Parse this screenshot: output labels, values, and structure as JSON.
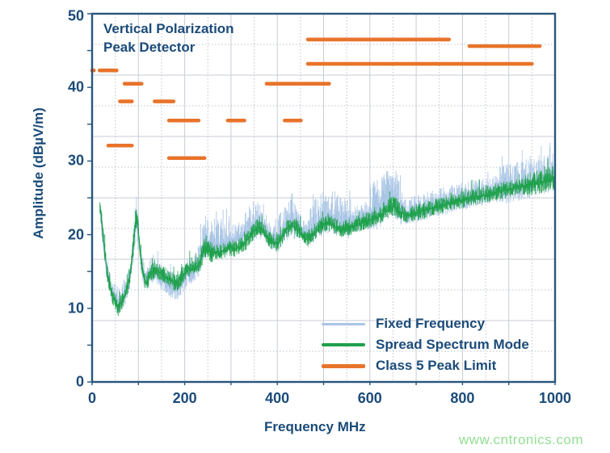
{
  "page": {
    "watermark": "www.cntronics.com"
  },
  "chart_data": {
    "type": "line",
    "annotation": [
      "Vertical Polarization",
      "Peak Detector"
    ],
    "xlabel": "Frequency MHz",
    "ylabel": "Amplitude (dBµV/m)",
    "xlim": [
      0,
      1000
    ],
    "ylim": [
      0,
      50
    ],
    "x_ticks": [
      0,
      200,
      400,
      600,
      800,
      1000
    ],
    "y_ticks": [
      0,
      10,
      20,
      30,
      40,
      50
    ],
    "grid": {
      "on": true,
      "x_step_mhz": 50,
      "y_divisions": 12
    },
    "legend": {
      "position": "inside-bottom-right"
    },
    "colors": {
      "text_navy": "#1b4b7a",
      "axis_border": "#29567c",
      "grid_solid": "#c8cdd5",
      "grid_dotted": "#bcc4ce",
      "watermark_green": "#93df93"
    },
    "series": [
      {
        "name": "Fixed Frequency",
        "type": "noisy-line",
        "color": "#a9c5e5",
        "noise": {
          "up": 2.2,
          "down": 1.6,
          "seed": 7
        },
        "spike_zones": [
          [
            88,
            102,
            1.4
          ],
          [
            228,
            300,
            1.7
          ],
          [
            330,
            372,
            1.5
          ],
          [
            396,
            440,
            1.4
          ],
          [
            470,
            560,
            1.8
          ],
          [
            600,
            668,
            2.1
          ],
          [
            880,
            1000,
            1.5
          ]
        ],
        "anchors": [
          [
            17,
            23.2
          ],
          [
            22,
            20.5
          ],
          [
            28,
            16.8
          ],
          [
            35,
            14.0
          ],
          [
            42,
            12.4
          ],
          [
            50,
            11.2
          ],
          [
            58,
            10.6
          ],
          [
            66,
            11.4
          ],
          [
            74,
            12.4
          ],
          [
            82,
            14.2
          ],
          [
            90,
            18.5
          ],
          [
            95,
            22.5
          ],
          [
            100,
            19.8
          ],
          [
            106,
            16.0
          ],
          [
            112,
            14.4
          ],
          [
            120,
            13.9
          ],
          [
            128,
            14.6
          ],
          [
            136,
            14.9
          ],
          [
            144,
            14.5
          ],
          [
            152,
            13.9
          ],
          [
            160,
            13.4
          ],
          [
            168,
            13.0
          ],
          [
            176,
            12.8
          ],
          [
            184,
            12.7
          ],
          [
            192,
            13.1
          ],
          [
            200,
            14.0
          ],
          [
            208,
            14.8
          ],
          [
            216,
            14.9
          ],
          [
            224,
            15.1
          ],
          [
            232,
            16.0
          ],
          [
            238,
            17.8
          ],
          [
            244,
            18.8
          ],
          [
            252,
            18.9
          ],
          [
            260,
            18.4
          ],
          [
            270,
            18.6
          ],
          [
            280,
            18.8
          ],
          [
            290,
            18.9
          ],
          [
            300,
            19.1
          ],
          [
            310,
            19.3
          ],
          [
            320,
            19.6
          ],
          [
            330,
            20.1
          ],
          [
            340,
            20.7
          ],
          [
            350,
            21.3
          ],
          [
            358,
            21.5
          ],
          [
            366,
            21.0
          ],
          [
            374,
            20.4
          ],
          [
            382,
            19.8
          ],
          [
            390,
            19.4
          ],
          [
            398,
            19.5
          ],
          [
            406,
            20.0
          ],
          [
            414,
            20.8
          ],
          [
            422,
            21.4
          ],
          [
            430,
            21.8
          ],
          [
            438,
            21.5
          ],
          [
            446,
            21.0
          ],
          [
            454,
            20.4
          ],
          [
            462,
            20.0
          ],
          [
            470,
            20.4
          ],
          [
            478,
            20.9
          ],
          [
            486,
            21.3
          ],
          [
            494,
            21.7
          ],
          [
            502,
            22.0
          ],
          [
            510,
            22.3
          ],
          [
            518,
            22.1
          ],
          [
            526,
            21.9
          ],
          [
            534,
            21.7
          ],
          [
            542,
            21.5
          ],
          [
            550,
            21.5
          ],
          [
            560,
            21.6
          ],
          [
            572,
            21.9
          ],
          [
            584,
            22.1
          ],
          [
            596,
            22.3
          ],
          [
            608,
            22.6
          ],
          [
            620,
            23.0
          ],
          [
            630,
            23.6
          ],
          [
            640,
            24.4
          ],
          [
            648,
            24.7
          ],
          [
            656,
            24.2
          ],
          [
            664,
            23.6
          ],
          [
            672,
            23.1
          ],
          [
            680,
            22.9
          ],
          [
            690,
            23.0
          ],
          [
            702,
            23.2
          ],
          [
            714,
            23.5
          ],
          [
            726,
            23.7
          ],
          [
            738,
            23.9
          ],
          [
            750,
            24.1
          ],
          [
            762,
            24.3
          ],
          [
            774,
            24.5
          ],
          [
            786,
            24.7
          ],
          [
            798,
            24.9
          ],
          [
            810,
            25.0
          ],
          [
            822,
            25.2
          ],
          [
            834,
            25.4
          ],
          [
            846,
            25.6
          ],
          [
            858,
            25.8
          ],
          [
            870,
            25.9
          ],
          [
            882,
            26.1
          ],
          [
            894,
            26.3
          ],
          [
            906,
            26.5
          ],
          [
            918,
            26.7
          ],
          [
            930,
            26.9
          ],
          [
            942,
            27.1
          ],
          [
            954,
            27.3
          ],
          [
            966,
            27.5
          ],
          [
            978,
            27.7
          ],
          [
            1000,
            28.0
          ]
        ]
      },
      {
        "name": "Spread Spectrum Mode",
        "type": "noisy-line",
        "color": "#1fa14b",
        "noise": {
          "up": 1.2,
          "down": 1.1,
          "seed": 3
        },
        "spike_zones": [
          [
            88,
            100,
            1.3
          ],
          [
            230,
            260,
            1.3
          ],
          [
            620,
            660,
            1.2
          ],
          [
            930,
            1000,
            1.5
          ]
        ],
        "anchors": [
          [
            17,
            23.8
          ],
          [
            20,
            22.5
          ],
          [
            24,
            19.5
          ],
          [
            28,
            17.2
          ],
          [
            33,
            14.8
          ],
          [
            38,
            13.0
          ],
          [
            44,
            11.6
          ],
          [
            50,
            10.8
          ],
          [
            56,
            10.0
          ],
          [
            62,
            10.6
          ],
          [
            68,
            11.2
          ],
          [
            74,
            12.2
          ],
          [
            80,
            13.8
          ],
          [
            85,
            16.0
          ],
          [
            90,
            19.2
          ],
          [
            94,
            21.8
          ],
          [
            97,
            22.4
          ],
          [
            100,
            20.6
          ],
          [
            104,
            17.6
          ],
          [
            108,
            15.4
          ],
          [
            113,
            13.9
          ],
          [
            118,
            13.4
          ],
          [
            124,
            14.3
          ],
          [
            130,
            14.9
          ],
          [
            138,
            15.1
          ],
          [
            146,
            14.9
          ],
          [
            154,
            14.6
          ],
          [
            162,
            14.1
          ],
          [
            170,
            13.9
          ],
          [
            178,
            13.4
          ],
          [
            186,
            13.5
          ],
          [
            194,
            14.2
          ],
          [
            202,
            15.0
          ],
          [
            210,
            15.4
          ],
          [
            218,
            15.2
          ],
          [
            226,
            15.6
          ],
          [
            234,
            16.3
          ],
          [
            240,
            17.8
          ],
          [
            246,
            18.2
          ],
          [
            252,
            17.8
          ],
          [
            260,
            17.4
          ],
          [
            268,
            17.7
          ],
          [
            276,
            17.6
          ],
          [
            284,
            17.9
          ],
          [
            292,
            18.0
          ],
          [
            300,
            18.2
          ],
          [
            308,
            18.0
          ],
          [
            316,
            18.3
          ],
          [
            324,
            18.6
          ],
          [
            332,
            19.0
          ],
          [
            340,
            19.7
          ],
          [
            348,
            20.3
          ],
          [
            356,
            20.9
          ],
          [
            362,
            21.0
          ],
          [
            368,
            20.6
          ],
          [
            374,
            20.1
          ],
          [
            380,
            19.6
          ],
          [
            386,
            19.2
          ],
          [
            392,
            18.9
          ],
          [
            398,
            18.8
          ],
          [
            404,
            19.1
          ],
          [
            410,
            19.6
          ],
          [
            416,
            20.3
          ],
          [
            422,
            20.8
          ],
          [
            428,
            21.0
          ],
          [
            434,
            21.2
          ],
          [
            440,
            20.9
          ],
          [
            446,
            20.6
          ],
          [
            452,
            20.1
          ],
          [
            458,
            19.5
          ],
          [
            464,
            19.3
          ],
          [
            470,
            19.7
          ],
          [
            476,
            20.0
          ],
          [
            484,
            20.5
          ],
          [
            492,
            21.0
          ],
          [
            500,
            21.3
          ],
          [
            508,
            21.5
          ],
          [
            516,
            21.4
          ],
          [
            524,
            21.1
          ],
          [
            532,
            20.9
          ],
          [
            540,
            20.7
          ],
          [
            548,
            20.8
          ],
          [
            556,
            21.0
          ],
          [
            566,
            21.2
          ],
          [
            576,
            21.5
          ],
          [
            586,
            21.7
          ],
          [
            596,
            21.9
          ],
          [
            606,
            22.1
          ],
          [
            616,
            22.4
          ],
          [
            626,
            22.8
          ],
          [
            634,
            23.2
          ],
          [
            642,
            23.7
          ],
          [
            650,
            23.8
          ],
          [
            658,
            23.5
          ],
          [
            666,
            23.1
          ],
          [
            674,
            22.8
          ],
          [
            682,
            22.6
          ],
          [
            690,
            22.8
          ],
          [
            700,
            23.0
          ],
          [
            712,
            23.2
          ],
          [
            724,
            23.4
          ],
          [
            736,
            23.6
          ],
          [
            748,
            23.8
          ],
          [
            760,
            24.0
          ],
          [
            772,
            24.3
          ],
          [
            784,
            24.4
          ],
          [
            796,
            24.6
          ],
          [
            808,
            24.8
          ],
          [
            820,
            25.0
          ],
          [
            832,
            25.1
          ],
          [
            844,
            25.3
          ],
          [
            856,
            25.5
          ],
          [
            868,
            25.7
          ],
          [
            880,
            25.9
          ],
          [
            892,
            26.0
          ],
          [
            904,
            26.2
          ],
          [
            916,
            26.4
          ],
          [
            928,
            26.5
          ],
          [
            940,
            26.7
          ],
          [
            952,
            26.9
          ],
          [
            964,
            27.0
          ],
          [
            976,
            27.2
          ],
          [
            988,
            27.4
          ],
          [
            1000,
            27.6
          ]
        ]
      },
      {
        "name": "Class 5 Peak Limit",
        "type": "segments",
        "color": "#e8732a",
        "segments": [
          [
            0,
            4,
            42.3
          ],
          [
            16,
            53,
            42.3
          ],
          [
            70,
            107,
            40.5
          ],
          [
            60,
            86,
            38.1
          ],
          [
            135,
            176,
            38.1
          ],
          [
            166,
            230,
            35.5
          ],
          [
            293,
            329,
            35.5
          ],
          [
            416,
            451,
            35.5
          ],
          [
            35,
            86,
            32.1
          ],
          [
            166,
            243,
            30.4
          ],
          [
            466,
            771,
            46.5
          ],
          [
            815,
            967,
            45.6
          ],
          [
            466,
            950,
            43.2
          ],
          [
            377,
            512,
            40.5
          ]
        ]
      }
    ]
  }
}
